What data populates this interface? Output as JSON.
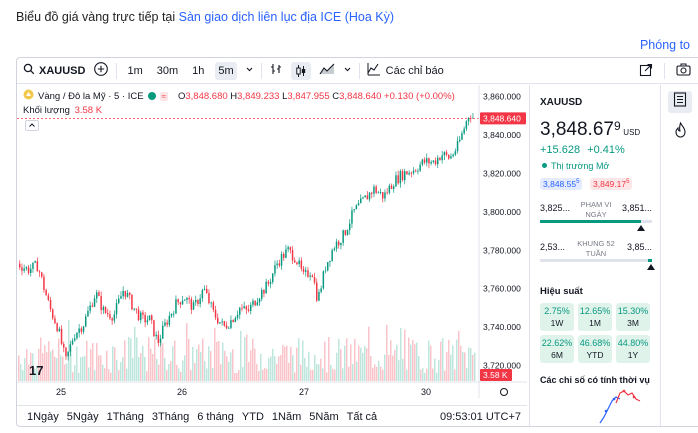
{
  "page": {
    "title_prefix": "Biểu đồ giá vàng trực tiếp tại ",
    "title_link": "Sàn giao dịch liên lục địa ICE (Hoa Kỳ)",
    "zoom_label": "Phóng to"
  },
  "toolbar": {
    "symbol": "XAUUSD",
    "intervals": [
      "1m",
      "30m",
      "1h",
      "5m"
    ],
    "active_interval": "5m",
    "indicators_label": "Các chỉ báo"
  },
  "legend": {
    "name": "Vàng / Đô la Mỹ · 5 · ICE",
    "o_label": "O",
    "o": "3,848.680",
    "h_label": "H",
    "h": "3,849.233",
    "l_label": "L",
    "l": "3,847.955",
    "c_label": "C",
    "c": "3,848.640",
    "change": "+0.130 (+0.00%)",
    "volume_label": "Khối lượng",
    "volume": "3.58 K"
  },
  "price_axis": {
    "ticks": [
      "3,860.000",
      "3,840.000",
      "3,820.000",
      "3,800.000",
      "3,780.000",
      "3,760.000",
      "3,740.000",
      "3,720.000"
    ],
    "current_price": "3,848.640",
    "volume_badge": "3.58 K"
  },
  "time_axis": {
    "ticks": [
      "25",
      "26",
      "27",
      "30"
    ]
  },
  "bottom_bar": {
    "ranges": [
      "1Ngày",
      "5Ngày",
      "1Tháng",
      "3Tháng",
      "6 tháng",
      "YTD",
      "1Năm",
      "5Năm",
      "Tất cả"
    ],
    "clock": "09:53:01 UTC+7"
  },
  "side": {
    "symbol": "XAUUSD",
    "price_main": "3,848.67",
    "price_sup": "9",
    "currency": "USD",
    "change": "+15.628",
    "change_pct": "+0.41%",
    "market_status": "Thị trường Mở",
    "bid": "3,848.55",
    "bid_sup": "5",
    "ask": "3,849.17",
    "ask_sup": "5",
    "day_range": {
      "low": "3,825...",
      "high": "3,851...",
      "label": "PHẠM VI NGÀY",
      "position": 0.9
    },
    "week52_range": {
      "low": "2,53...",
      "high": "3,85...",
      "label": "KHUNG 52 TUẦN",
      "position": 0.99
    },
    "performance_title": "Hiệu suất",
    "performance": [
      {
        "value": "2.75%",
        "label": "1W"
      },
      {
        "value": "12.65%",
        "label": "1M"
      },
      {
        "value": "15.30%",
        "label": "3M"
      },
      {
        "value": "22.62%",
        "label": "6M"
      },
      {
        "value": "46.68%",
        "label": "YTD"
      },
      {
        "value": "44.80%",
        "label": "1Y"
      }
    ],
    "technicals_title": "Các chỉ số có tính thời vụ"
  },
  "colors": {
    "up": "#089981",
    "down": "#f23645",
    "accent": "#2962ff",
    "vol_up": "#a8ddd2",
    "vol_down": "#f7b2b8"
  },
  "chart_data": {
    "type": "candlestick",
    "ylim": [
      3712,
      3866
    ],
    "last_close": 3848.64,
    "path": [
      [
        0,
        3773
      ],
      [
        10,
        3770
      ],
      [
        20,
        3772
      ],
      [
        32,
        3750
      ],
      [
        40,
        3740
      ],
      [
        48,
        3722
      ],
      [
        56,
        3736
      ],
      [
        66,
        3742
      ],
      [
        78,
        3758
      ],
      [
        86,
        3748
      ],
      [
        96,
        3746
      ],
      [
        106,
        3760
      ],
      [
        116,
        3750
      ],
      [
        124,
        3744
      ],
      [
        132,
        3744
      ],
      [
        140,
        3732
      ],
      [
        148,
        3742
      ],
      [
        158,
        3752
      ],
      [
        166,
        3756
      ],
      [
        176,
        3750
      ],
      [
        186,
        3760
      ],
      [
        196,
        3747
      ],
      [
        206,
        3740
      ],
      [
        214,
        3744
      ],
      [
        222,
        3750
      ],
      [
        230,
        3748
      ],
      [
        240,
        3756
      ],
      [
        250,
        3762
      ],
      [
        260,
        3774
      ],
      [
        270,
        3780
      ],
      [
        278,
        3776
      ],
      [
        286,
        3766
      ],
      [
        294,
        3770
      ],
      [
        300,
        3754
      ],
      [
        308,
        3772
      ],
      [
        316,
        3782
      ],
      [
        326,
        3788
      ],
      [
        336,
        3800
      ],
      [
        346,
        3806
      ],
      [
        356,
        3812
      ],
      [
        366,
        3808
      ],
      [
        376,
        3816
      ],
      [
        386,
        3820
      ],
      [
        396,
        3822
      ],
      [
        406,
        3826
      ],
      [
        416,
        3826
      ],
      [
        424,
        3830
      ],
      [
        432,
        3828
      ],
      [
        440,
        3834
      ],
      [
        448,
        3846
      ],
      [
        452,
        3852
      ],
      [
        456,
        3848.6
      ]
    ]
  }
}
